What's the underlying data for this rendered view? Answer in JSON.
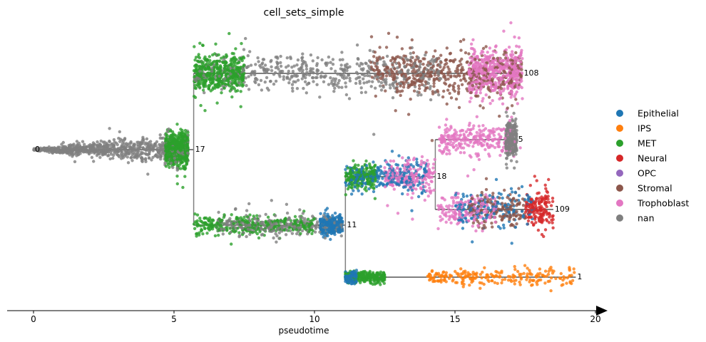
{
  "chart_data": {
    "type": "scatter",
    "title": "cell_sets_simple",
    "xlabel": "pseudotime",
    "ylabel": "",
    "xlim": [
      -1,
      20.3
    ],
    "x_ticks": [
      0,
      5,
      10,
      15,
      20
    ],
    "x_tick_labels": [
      "0",
      "5",
      "10",
      "15",
      "20"
    ],
    "legend_position": "right",
    "legend": [
      {
        "name": "Epithelial",
        "color": "#1f77b4"
      },
      {
        "name": "IPS",
        "color": "#ff7f0e"
      },
      {
        "name": "MET",
        "color": "#2ca02c"
      },
      {
        "name": "Neural",
        "color": "#d62728"
      },
      {
        "name": "OPC",
        "color": "#9467bd"
      },
      {
        "name": "Stromal",
        "color": "#8c564b"
      },
      {
        "name": "Trophoblast",
        "color": "#e377c2"
      },
      {
        "name": "nan",
        "color": "#7f7f7f"
      }
    ],
    "milestones": [
      {
        "label": "0",
        "x": 0.0,
        "row": 4
      },
      {
        "label": "17",
        "x": 5.7,
        "row": 4
      },
      {
        "label": "108",
        "x": 17.4,
        "row": 1
      },
      {
        "label": "11",
        "x": 11.1,
        "row": 7
      },
      {
        "label": "18",
        "x": 14.3,
        "row": 5
      },
      {
        "label": "5",
        "x": 17.2,
        "row": 3
      },
      {
        "label": "109",
        "x": 18.5,
        "row": 6
      },
      {
        "label": "1",
        "x": 19.3,
        "row": 8
      }
    ],
    "row_levels": {
      "1": 103,
      "3": 196,
      "4": 210,
      "5": 248,
      "6": 294,
      "7": 316,
      "8": 389
    },
    "edges": [
      {
        "from": "0",
        "to": "17",
        "row": 4
      },
      {
        "from": "17",
        "to": "108",
        "row": 1
      },
      {
        "from": "17",
        "to": "11",
        "row": 7
      },
      {
        "from": "11",
        "to": "18",
        "row": 5
      },
      {
        "from": "11",
        "to": "1",
        "row": 8
      },
      {
        "from": "18",
        "to": "5",
        "row": 3
      },
      {
        "from": "18",
        "to": "109",
        "row": 6
      }
    ],
    "segments": [
      {
        "x0": 0.0,
        "x1": 5.5,
        "row": 4,
        "spread_start": 1,
        "spread_end": 20,
        "n": 1500,
        "mix": [
          {
            "color": "#7f7f7f",
            "from": 0.0,
            "to": 5.5
          },
          {
            "color": "#2ca02c",
            "from": 4.7,
            "to": 5.5
          }
        ]
      },
      {
        "x0": 5.7,
        "x1": 17.4,
        "row": 1,
        "spread_start": 20,
        "spread_end": 30,
        "n": 2000,
        "mix": [
          {
            "color": "#7f7f7f",
            "from": 5.7,
            "to": 14.5
          },
          {
            "color": "#8c564b",
            "from": 12.0,
            "to": 17.4
          },
          {
            "color": "#2ca02c",
            "from": 5.7,
            "to": 7.5
          },
          {
            "color": "#e377c2",
            "from": 15.5,
            "to": 17.4
          }
        ]
      },
      {
        "x0": 5.7,
        "x1": 11.0,
        "row": 7,
        "spread_start": 12,
        "spread_end": 12,
        "n": 900,
        "mix": [
          {
            "color": "#2ca02c",
            "from": 5.7,
            "to": 10.0
          },
          {
            "color": "#7f7f7f",
            "from": 6.5,
            "to": 11.0
          },
          {
            "color": "#1f77b4",
            "from": 10.2,
            "to": 11.0
          }
        ]
      },
      {
        "x0": 11.1,
        "x1": 14.3,
        "row": 5,
        "spread_start": 12,
        "spread_end": 22,
        "n": 650,
        "mix": [
          {
            "color": "#1f77b4",
            "from": 11.1,
            "to": 14.0
          },
          {
            "color": "#2ca02c",
            "from": 11.1,
            "to": 12.2
          },
          {
            "color": "#e377c2",
            "from": 12.5,
            "to": 14.3
          }
        ]
      },
      {
        "x0": 14.4,
        "x1": 17.2,
        "row": 3,
        "spread_start": 18,
        "spread_end": 22,
        "n": 500,
        "mix": [
          {
            "color": "#e377c2",
            "from": 14.4,
            "to": 17.2
          },
          {
            "color": "#7f7f7f",
            "from": 16.8,
            "to": 17.2
          }
        ]
      },
      {
        "x0": 14.4,
        "x1": 18.5,
        "row": 6,
        "spread_start": 18,
        "spread_end": 24,
        "n": 650,
        "mix": [
          {
            "color": "#e377c2",
            "from": 14.4,
            "to": 16.5
          },
          {
            "color": "#1f77b4",
            "from": 15.0,
            "to": 17.8
          },
          {
            "color": "#8c564b",
            "from": 15.5,
            "to": 17.5
          },
          {
            "color": "#d62728",
            "from": 17.5,
            "to": 18.5
          }
        ]
      },
      {
        "x0": 11.1,
        "x1": 19.3,
        "row": 8,
        "spread_start": 6,
        "spread_end": 12,
        "n": 700,
        "mix": [
          {
            "color": "#2ca02c",
            "from": 11.1,
            "to": 12.5
          },
          {
            "color": "#1f77b4",
            "from": 11.1,
            "to": 11.5
          },
          {
            "color": "#ff7f0e",
            "from": 14.0,
            "to": 19.3
          }
        ]
      }
    ]
  }
}
